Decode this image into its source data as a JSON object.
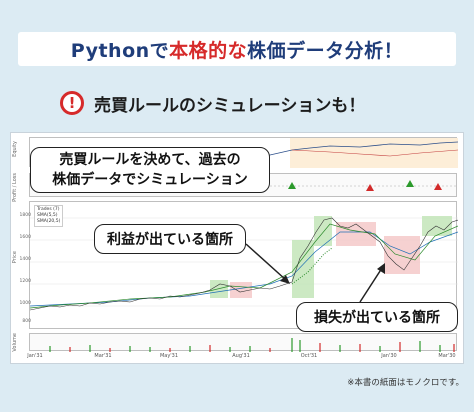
{
  "title": {
    "prefix": "Pythonで",
    "accent": "本格的な",
    "suffix": "株価データ分析！"
  },
  "subtitle": "売買ルールのシミュレーションも！",
  "warning_icon": "exclamation-circle-icon",
  "callouts": {
    "simulation_line1": "売買ルールを決めて、過去の",
    "simulation_line2": "株価データでシミュレーション",
    "profit": "利益が出ている箇所",
    "loss": "損失が出ている箇所"
  },
  "chart": {
    "equity_label": "Equity",
    "trades_label": "Profit / Loss",
    "price_label": "Price",
    "volume_label": "Volume",
    "legend": [
      "Trades (7)",
      "SMA(5,5)",
      "SMA(20,5)"
    ],
    "x_ticks": [
      "Jan'31",
      "Mar'31",
      "May'31",
      "Aug'31",
      "Oct'31",
      "Jan'30",
      "Mar'30"
    ],
    "y_ticks": [
      "1800",
      "1600",
      "1400",
      "1200",
      "1000",
      "800"
    ],
    "colors": {
      "price_line": "#333333",
      "sma_fast": "#2b8a2b",
      "sma_slow": "#1f6fb5",
      "profit_zone": "#bfe3b4",
      "loss_zone": "#f4c6c6",
      "up_triangle": "#2c9a2c",
      "down_triangle": "#d22a2a"
    }
  },
  "footnote": "※本書の紙面はモノクロです。"
}
